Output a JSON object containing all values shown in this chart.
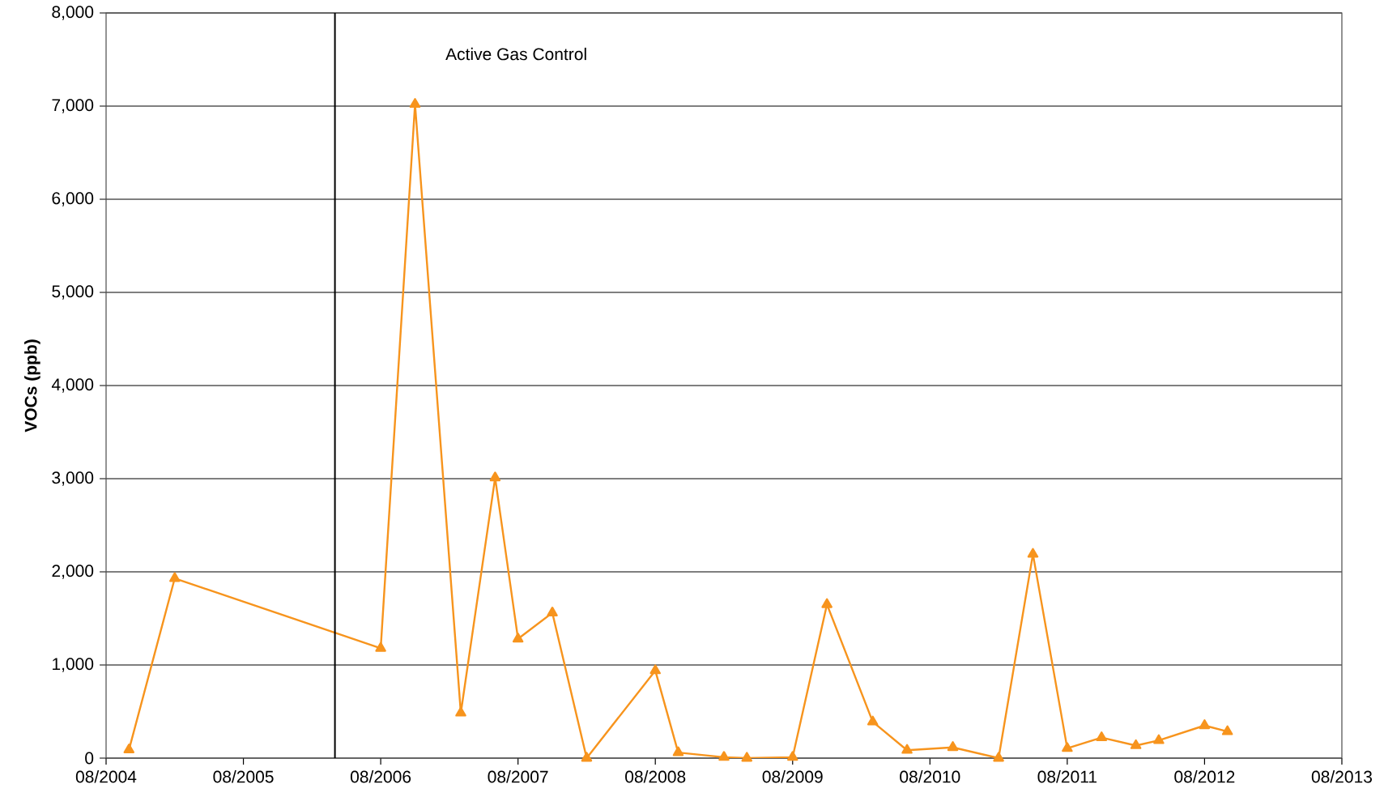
{
  "chart_data": {
    "type": "line",
    "ylabel": "VOCs (ppb)",
    "x": [
      "2004-10",
      "2005-02",
      "2006-08",
      "2006-11",
      "2007-03",
      "2007-06",
      "2007-08",
      "2007-11",
      "2008-02",
      "2008-08",
      "2008-10",
      "2009-02",
      "2009-04",
      "2009-08",
      "2009-11",
      "2010-03",
      "2010-06",
      "2010-10",
      "2011-02",
      "2011-05",
      "2011-08",
      "2011-11",
      "2012-02",
      "2012-04",
      "2012-08",
      "2012-10"
    ],
    "series": [
      {
        "color": "#f7941d",
        "values": [
          90,
          1930,
          1180,
          7020,
          485,
          3010,
          1280,
          1560,
          0,
          940,
          60,
          10,
          0,
          10,
          1650,
          390,
          85,
          115,
          0,
          2190,
          105,
          220,
          135,
          190,
          350,
          285
        ]
      }
    ],
    "xlim": [
      "2004-08",
      "2013-08"
    ],
    "xticks": [
      {
        "value": "2004-08",
        "label": "08/2004"
      },
      {
        "value": "2005-08",
        "label": "08/2005"
      },
      {
        "value": "2006-08",
        "label": "08/2006"
      },
      {
        "value": "2007-08",
        "label": "08/2007"
      },
      {
        "value": "2008-08",
        "label": "08/2008"
      },
      {
        "value": "2009-08",
        "label": "08/2009"
      },
      {
        "value": "2010-08",
        "label": "08/2010"
      },
      {
        "value": "2011-08",
        "label": "08/2011"
      },
      {
        "value": "2012-08",
        "label": "08/2012"
      },
      {
        "value": "2013-08",
        "label": "08/2013"
      }
    ],
    "ylim": [
      0,
      8000
    ],
    "yticks": [
      {
        "value": 0,
        "label": "0"
      },
      {
        "value": 1000,
        "label": "1,000"
      },
      {
        "value": 2000,
        "label": "2,000"
      },
      {
        "value": 3000,
        "label": "3,000"
      },
      {
        "value": 4000,
        "label": "4,000"
      },
      {
        "value": 5000,
        "label": "5,000"
      },
      {
        "value": 6000,
        "label": "6,000"
      },
      {
        "value": 7000,
        "label": "7,000"
      },
      {
        "value": 8000,
        "label": "8,000"
      }
    ],
    "ref_lines": [
      {
        "axis": "x",
        "value": "2006-04",
        "color": "#000000"
      }
    ],
    "annotations": [
      "Active Gas Control"
    ],
    "grid": "y",
    "marker": "triangle",
    "line_style": "solid"
  }
}
